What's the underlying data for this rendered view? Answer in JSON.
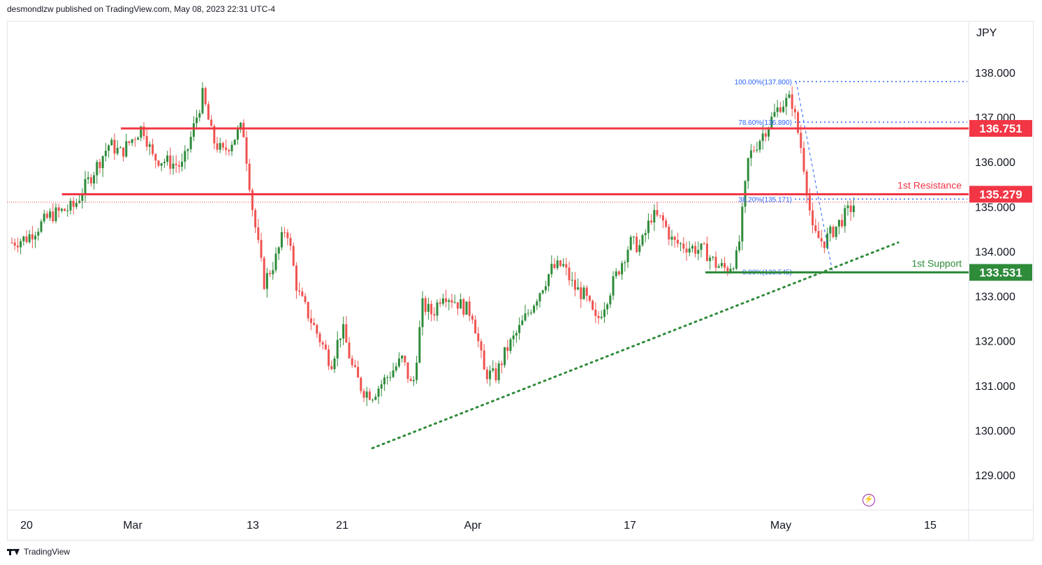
{
  "header": {
    "publisher_text": "desmondlzw published on TradingView.com, May 08, 2023 22:31 UTC-4"
  },
  "footer": {
    "brand": "TradingView"
  },
  "colors": {
    "up": "#26a69a",
    "up_bar": "#2e8b3a",
    "down": "#ef5350",
    "resistance": "#f23645",
    "support": "#2e8b3a",
    "fib": "#2962ff",
    "trend": "#2e8b3a"
  },
  "chart_data": {
    "type": "candlestick",
    "currency_label": "JPY",
    "y_ticks": [
      138,
      137,
      136,
      135,
      134,
      133,
      132,
      131,
      130,
      129
    ],
    "y_tick_labels": [
      "138.000",
      "137.000",
      "136.000",
      "135.000",
      "134.000",
      "133.000",
      "132.000",
      "131.000",
      "130.000",
      "129.000"
    ],
    "ylim": [
      128.3,
      139.3
    ],
    "x_tick_labels": [
      {
        "label": "20",
        "date": "2023-02-20"
      },
      {
        "label": "Mar",
        "date": "2023-03-01"
      },
      {
        "label": "13",
        "date": "2023-03-13"
      },
      {
        "label": "21",
        "date": "2023-03-21"
      },
      {
        "label": "Apr",
        "date": "2023-04-03"
      },
      {
        "label": "17",
        "date": "2023-04-17"
      },
      {
        "label": "May",
        "date": "2023-05-01"
      },
      {
        "label": "15",
        "date": "2023-05-15"
      }
    ],
    "price_path": [
      {
        "date": "2023-02-17",
        "price": 134.2
      },
      {
        "date": "2023-02-20",
        "price": 134.3
      },
      {
        "date": "2023-02-22",
        "price": 134.8
      },
      {
        "date": "2023-02-24",
        "price": 135.0
      },
      {
        "date": "2023-02-27",
        "price": 136.4
      },
      {
        "date": "2023-02-28",
        "price": 136.2
      },
      {
        "date": "2023-03-02",
        "price": 136.8
      },
      {
        "date": "2023-03-03",
        "price": 136.1
      },
      {
        "date": "2023-03-06",
        "price": 135.9
      },
      {
        "date": "2023-03-08",
        "price": 137.5
      },
      {
        "date": "2023-03-09",
        "price": 136.5
      },
      {
        "date": "2023-03-10",
        "price": 136.2
      },
      {
        "date": "2023-03-12",
        "price": 136.8
      },
      {
        "date": "2023-03-13",
        "price": 134.9
      },
      {
        "date": "2023-03-14",
        "price": 133.3
      },
      {
        "date": "2023-03-15",
        "price": 133.8
      },
      {
        "date": "2023-03-16",
        "price": 134.6
      },
      {
        "date": "2023-03-17",
        "price": 133.1
      },
      {
        "date": "2023-03-20",
        "price": 131.5
      },
      {
        "date": "2023-03-21",
        "price": 132.3
      },
      {
        "date": "2023-03-22",
        "price": 131.4
      },
      {
        "date": "2023-03-23",
        "price": 130.9
      },
      {
        "date": "2023-03-24",
        "price": 130.8
      },
      {
        "date": "2023-03-27",
        "price": 131.6
      },
      {
        "date": "2023-03-28",
        "price": 130.9
      },
      {
        "date": "2023-03-29",
        "price": 132.8
      },
      {
        "date": "2023-03-30",
        "price": 132.6
      },
      {
        "date": "2023-03-31",
        "price": 133.1
      },
      {
        "date": "2023-04-03",
        "price": 132.6
      },
      {
        "date": "2023-04-04",
        "price": 131.3
      },
      {
        "date": "2023-04-05",
        "price": 131.2
      },
      {
        "date": "2023-04-06",
        "price": 131.8
      },
      {
        "date": "2023-04-07",
        "price": 132.2
      },
      {
        "date": "2023-04-10",
        "price": 133.6
      },
      {
        "date": "2023-04-11",
        "price": 133.7
      },
      {
        "date": "2023-04-12",
        "price": 133.2
      },
      {
        "date": "2023-04-13",
        "price": 133.0
      },
      {
        "date": "2023-04-14",
        "price": 132.4
      },
      {
        "date": "2023-04-17",
        "price": 134.2
      },
      {
        "date": "2023-04-18",
        "price": 134.1
      },
      {
        "date": "2023-04-19",
        "price": 134.8
      },
      {
        "date": "2023-04-20",
        "price": 134.7
      },
      {
        "date": "2023-04-21",
        "price": 134.2
      },
      {
        "date": "2023-04-24",
        "price": 134.0
      },
      {
        "date": "2023-04-25",
        "price": 133.7
      },
      {
        "date": "2023-04-26",
        "price": 133.6
      },
      {
        "date": "2023-04-27",
        "price": 133.9
      },
      {
        "date": "2023-04-28",
        "price": 136.1
      },
      {
        "date": "2023-05-01",
        "price": 137.3
      },
      {
        "date": "2023-05-02",
        "price": 137.4
      },
      {
        "date": "2023-05-03",
        "price": 136.2
      },
      {
        "date": "2023-05-04",
        "price": 134.4
      },
      {
        "date": "2023-05-05",
        "price": 134.2
      },
      {
        "date": "2023-05-08",
        "price": 135.1
      }
    ],
    "horizontal_levels": [
      {
        "name": "resistance-2",
        "value": 136.751,
        "price_label": "136.751",
        "text": "",
        "color": "#f23645",
        "from": "2023-02-28"
      },
      {
        "name": "resistance-1",
        "value": 135.279,
        "price_label": "135.279",
        "text": "1st Resistance",
        "color": "#f23645",
        "from": "2023-02-23"
      },
      {
        "name": "support-1",
        "value": 133.531,
        "price_label": "133.531",
        "text": "1st Support",
        "color": "#2e8b3a",
        "from": "2023-04-24"
      }
    ],
    "fib_levels": [
      {
        "label": "100.00%(137.800)",
        "value": 137.8
      },
      {
        "label": "78.60%(136.890)",
        "value": 136.89
      },
      {
        "label": "38.20%(135.171)",
        "value": 135.171
      },
      {
        "label": "0.00%(133.545)",
        "value": 133.545
      }
    ],
    "trendline": {
      "start": {
        "date": "2023-03-24",
        "price": 129.6
      },
      "end": {
        "date": "2023-05-12",
        "price": 134.2
      }
    },
    "current_price": 135.1
  }
}
